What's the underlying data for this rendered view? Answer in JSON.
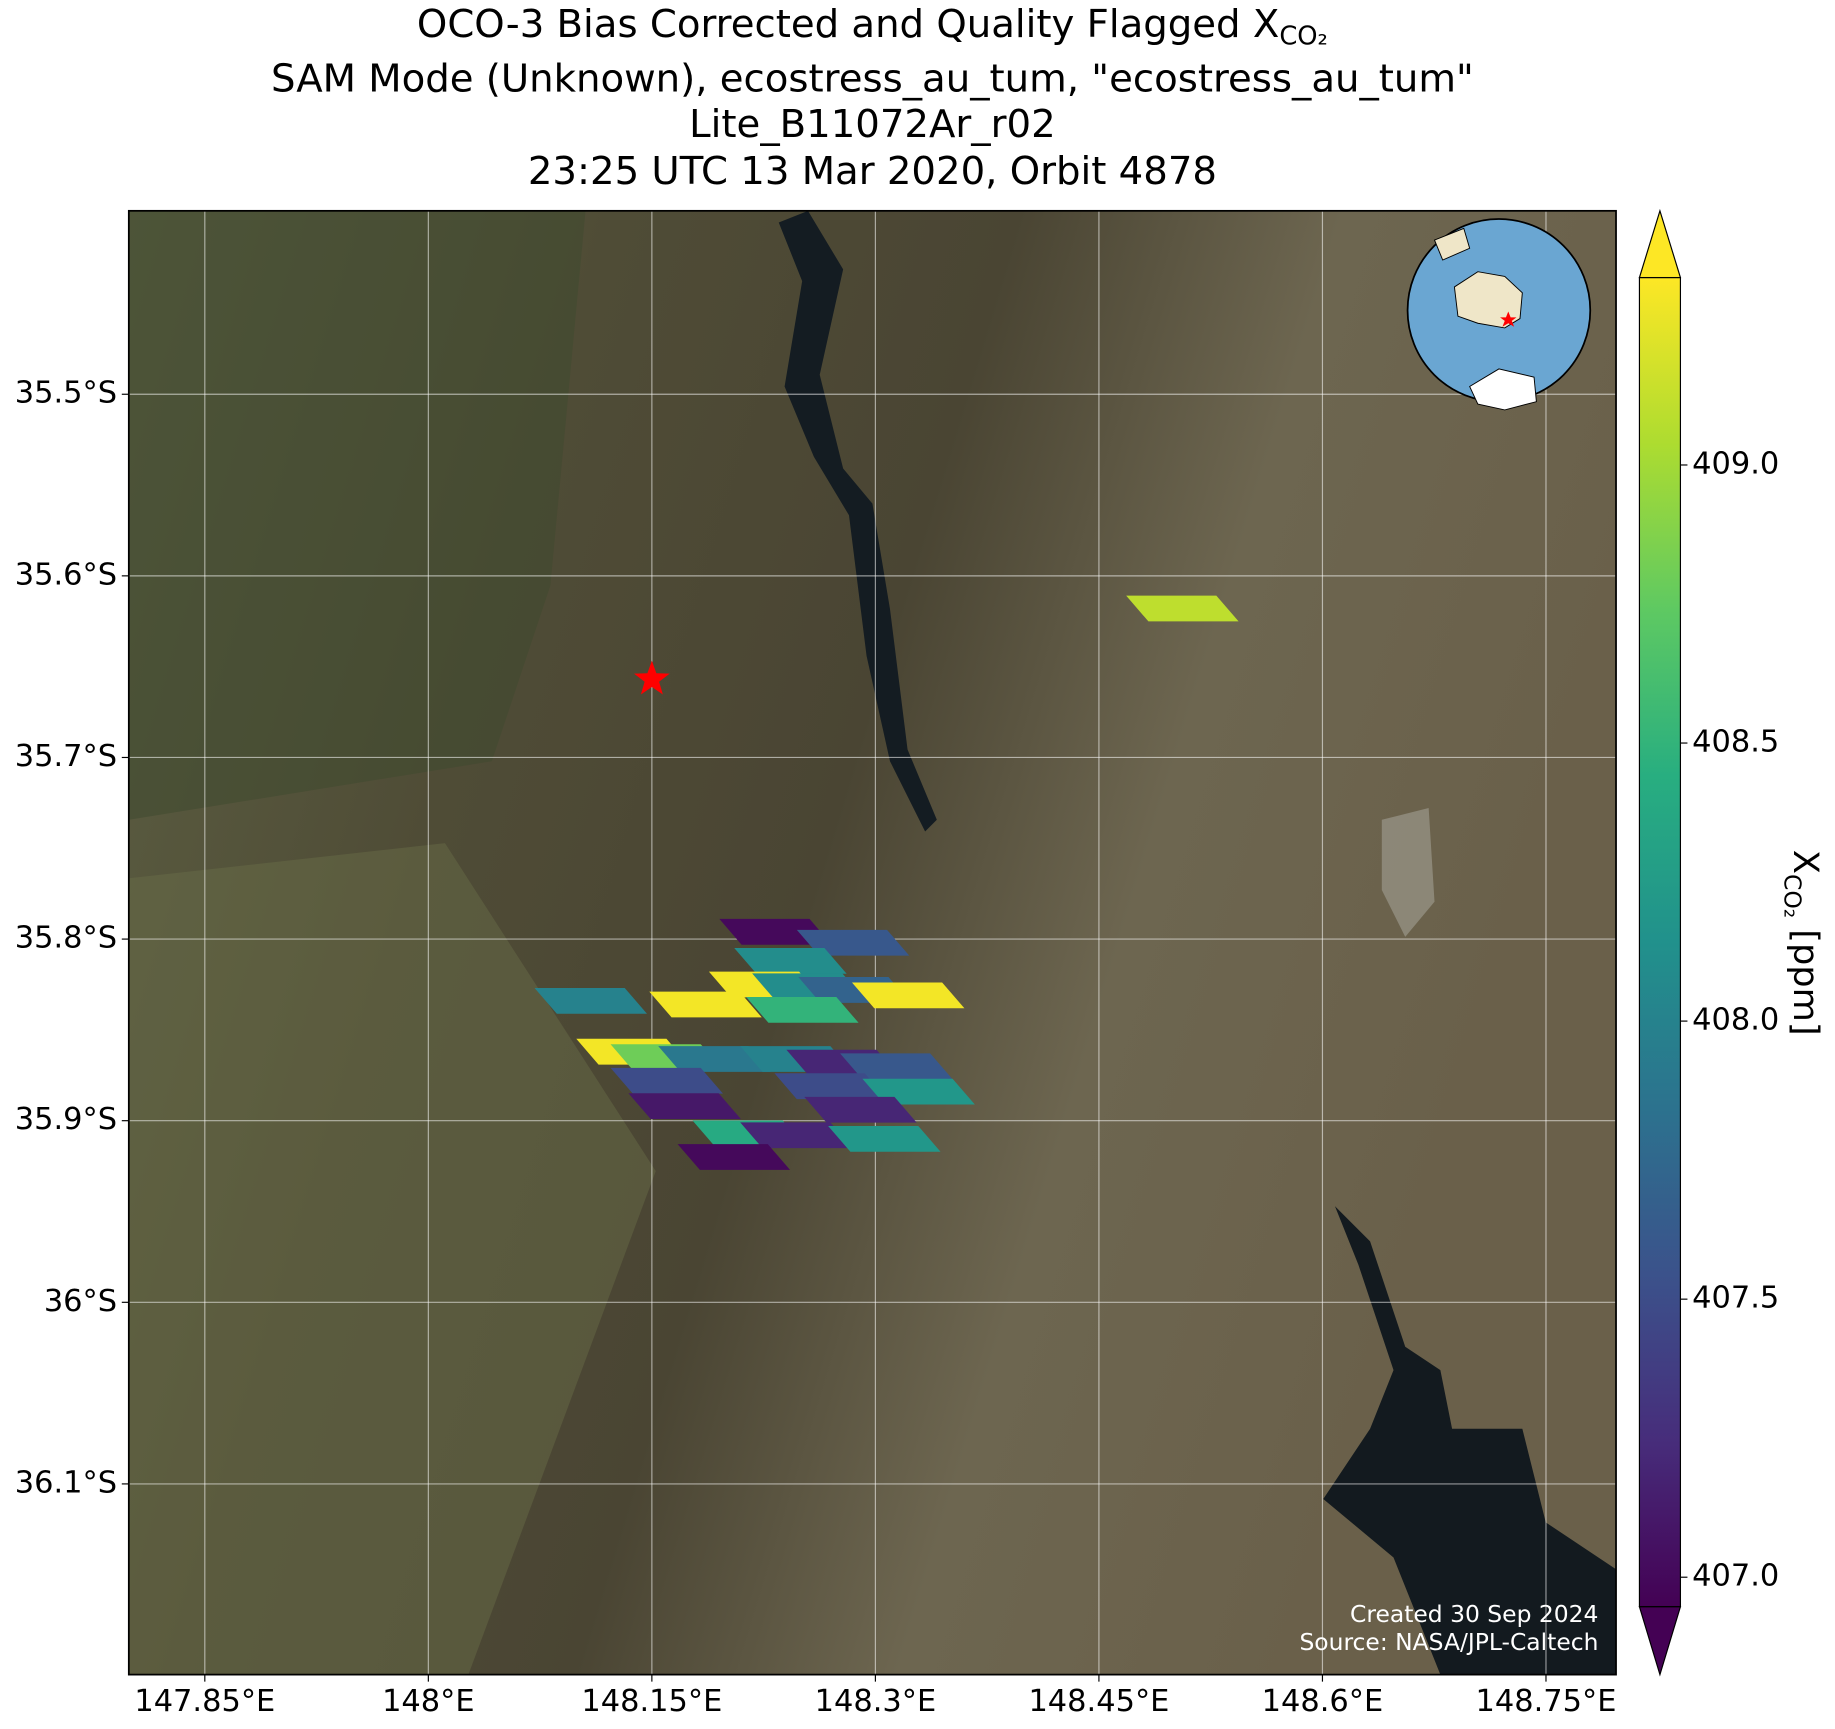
{
  "chart_data": {
    "type": "map",
    "title": {
      "text": "OCO-3 Bias Corrected and Quality Flagged X",
      "subscript": "CO₂"
    },
    "subtitle": [
      "SAM Mode (Unknown), ecostress_au_tum, \"ecostress_au_tum\"",
      "Lite_B11072Ar_r02",
      "23:25 UTC 13 Mar 2020, Orbit 4878"
    ],
    "xlim": [
      147.799,
      148.797
    ],
    "ylim": [
      -36.205,
      -35.399
    ],
    "xticks": [
      {
        "value": 147.85,
        "label": "147.85°E"
      },
      {
        "value": 148.0,
        "label": "148°E"
      },
      {
        "value": 148.15,
        "label": "148.15°E"
      },
      {
        "value": 148.3,
        "label": "148.3°E"
      },
      {
        "value": 148.45,
        "label": "148.45°E"
      },
      {
        "value": 148.6,
        "label": "148.6°E"
      },
      {
        "value": 148.75,
        "label": "148.75°E"
      }
    ],
    "yticks": [
      {
        "value": -35.5,
        "label": "35.5°S"
      },
      {
        "value": -35.6,
        "label": "35.6°S"
      },
      {
        "value": -35.7,
        "label": "35.7°S"
      },
      {
        "value": -35.8,
        "label": "35.8°S"
      },
      {
        "value": -35.9,
        "label": "35.9°S"
      },
      {
        "value": -36.0,
        "label": "36°S"
      },
      {
        "value": -36.1,
        "label": "36.1°S"
      }
    ],
    "grid": true,
    "footprints": {
      "lon": [
        148.233,
        148.285,
        148.243,
        148.226,
        148.255,
        148.286,
        148.322,
        148.251,
        148.109,
        148.186,
        148.137,
        148.16,
        148.192,
        148.247,
        148.278,
        148.314,
        148.16,
        148.27,
        148.329,
        148.172,
        148.29,
        148.215,
        148.247,
        148.306,
        148.205,
        148.506
      ],
      "lat": [
        -35.796,
        -35.802,
        -35.812,
        -35.825,
        -35.826,
        -35.828,
        -35.831,
        -35.839,
        -35.834,
        -35.836,
        -35.862,
        -35.865,
        -35.866,
        -35.866,
        -35.868,
        -35.87,
        -35.878,
        -35.881,
        -35.884,
        -35.892,
        -35.894,
        -35.907,
        -35.908,
        -35.91,
        -35.92,
        -35.618
      ],
      "values": [
        407.0,
        407.6,
        408.1,
        409.3,
        408.1,
        407.7,
        409.3,
        408.5,
        408.0,
        409.3,
        409.3,
        408.8,
        407.9,
        408.0,
        407.2,
        407.6,
        407.5,
        407.5,
        408.2,
        407.1,
        407.2,
        408.4,
        407.2,
        408.2,
        407.0,
        409.1
      ]
    },
    "target": {
      "lon": 148.15,
      "lat": -35.657,
      "color": "#ff0000"
    },
    "colorbar": {
      "label": {
        "text": "X",
        "subscript": "CO₂",
        "suffix": " [ppm]"
      },
      "clim": [
        406.947,
        409.337
      ],
      "ticks": [
        {
          "value": 407.0,
          "label": "407.0"
        },
        {
          "value": 407.5,
          "label": "407.5"
        },
        {
          "value": 408.0,
          "label": "408.0"
        },
        {
          "value": 408.5,
          "label": "408.5"
        },
        {
          "value": 409.0,
          "label": "409.0"
        }
      ],
      "colors": [
        "#440154",
        "#472d7b",
        "#3b528b",
        "#2c728e",
        "#21918c",
        "#28ae80",
        "#5ec962",
        "#addc30",
        "#fde725"
      ]
    },
    "annotations": [
      "Created 30 Sep 2024",
      "Source: NASA/JPL-Caltech"
    ]
  }
}
